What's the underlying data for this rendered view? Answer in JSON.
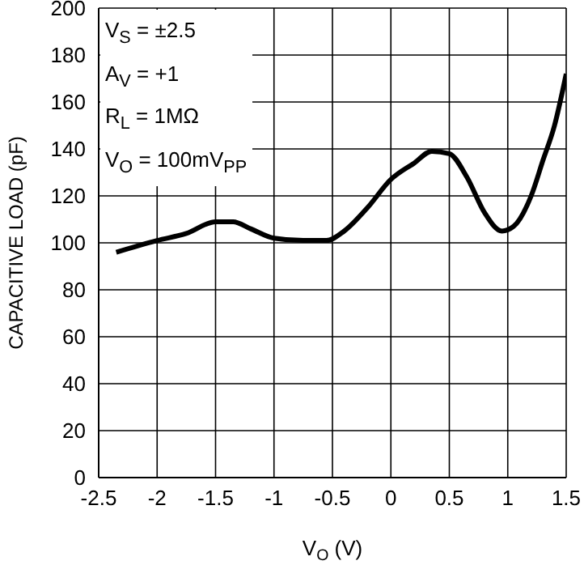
{
  "chart_data": {
    "type": "line",
    "xlabel": "V$_{O}$ (V)",
    "ylabel": "CAPACITIVE LOAD (pF)",
    "annotations": [
      "V$_{S}$ = ±2.5",
      "A$_{V}$ = +1",
      "R$_{L}$ = 1MΩ",
      "V$_{O}$ = 100mV$_{PP}$"
    ],
    "x": [
      -2.35,
      -2,
      -1.75,
      -1.5,
      -1.35,
      -1.2,
      -1,
      -0.75,
      -0.55,
      -0.4,
      -0.2,
      0,
      0.2,
      0.35,
      0.5,
      0.65,
      0.8,
      0.95,
      1.05,
      1.2,
      1.3,
      1.4,
      1.5
    ],
    "series": [
      {
        "color": "#000000",
        "values": [
          96,
          101,
          104,
          109,
          109,
          106,
          102,
          101,
          101,
          105,
          115,
          127,
          134,
          139,
          138,
          128,
          113,
          105,
          107,
          120,
          135,
          150,
          172
        ]
      }
    ],
    "xlim": [
      -2.5,
      1.5
    ],
    "xticks": [
      -2.5,
      -2,
      -1.5,
      -1,
      -0.5,
      0,
      0.5,
      1,
      1.5
    ],
    "ylim": [
      0,
      200
    ],
    "yticks": [
      0,
      20,
      40,
      60,
      80,
      100,
      120,
      140,
      160,
      180,
      200
    ],
    "grid": true,
    "marker": "none",
    "line_style": "solid"
  }
}
